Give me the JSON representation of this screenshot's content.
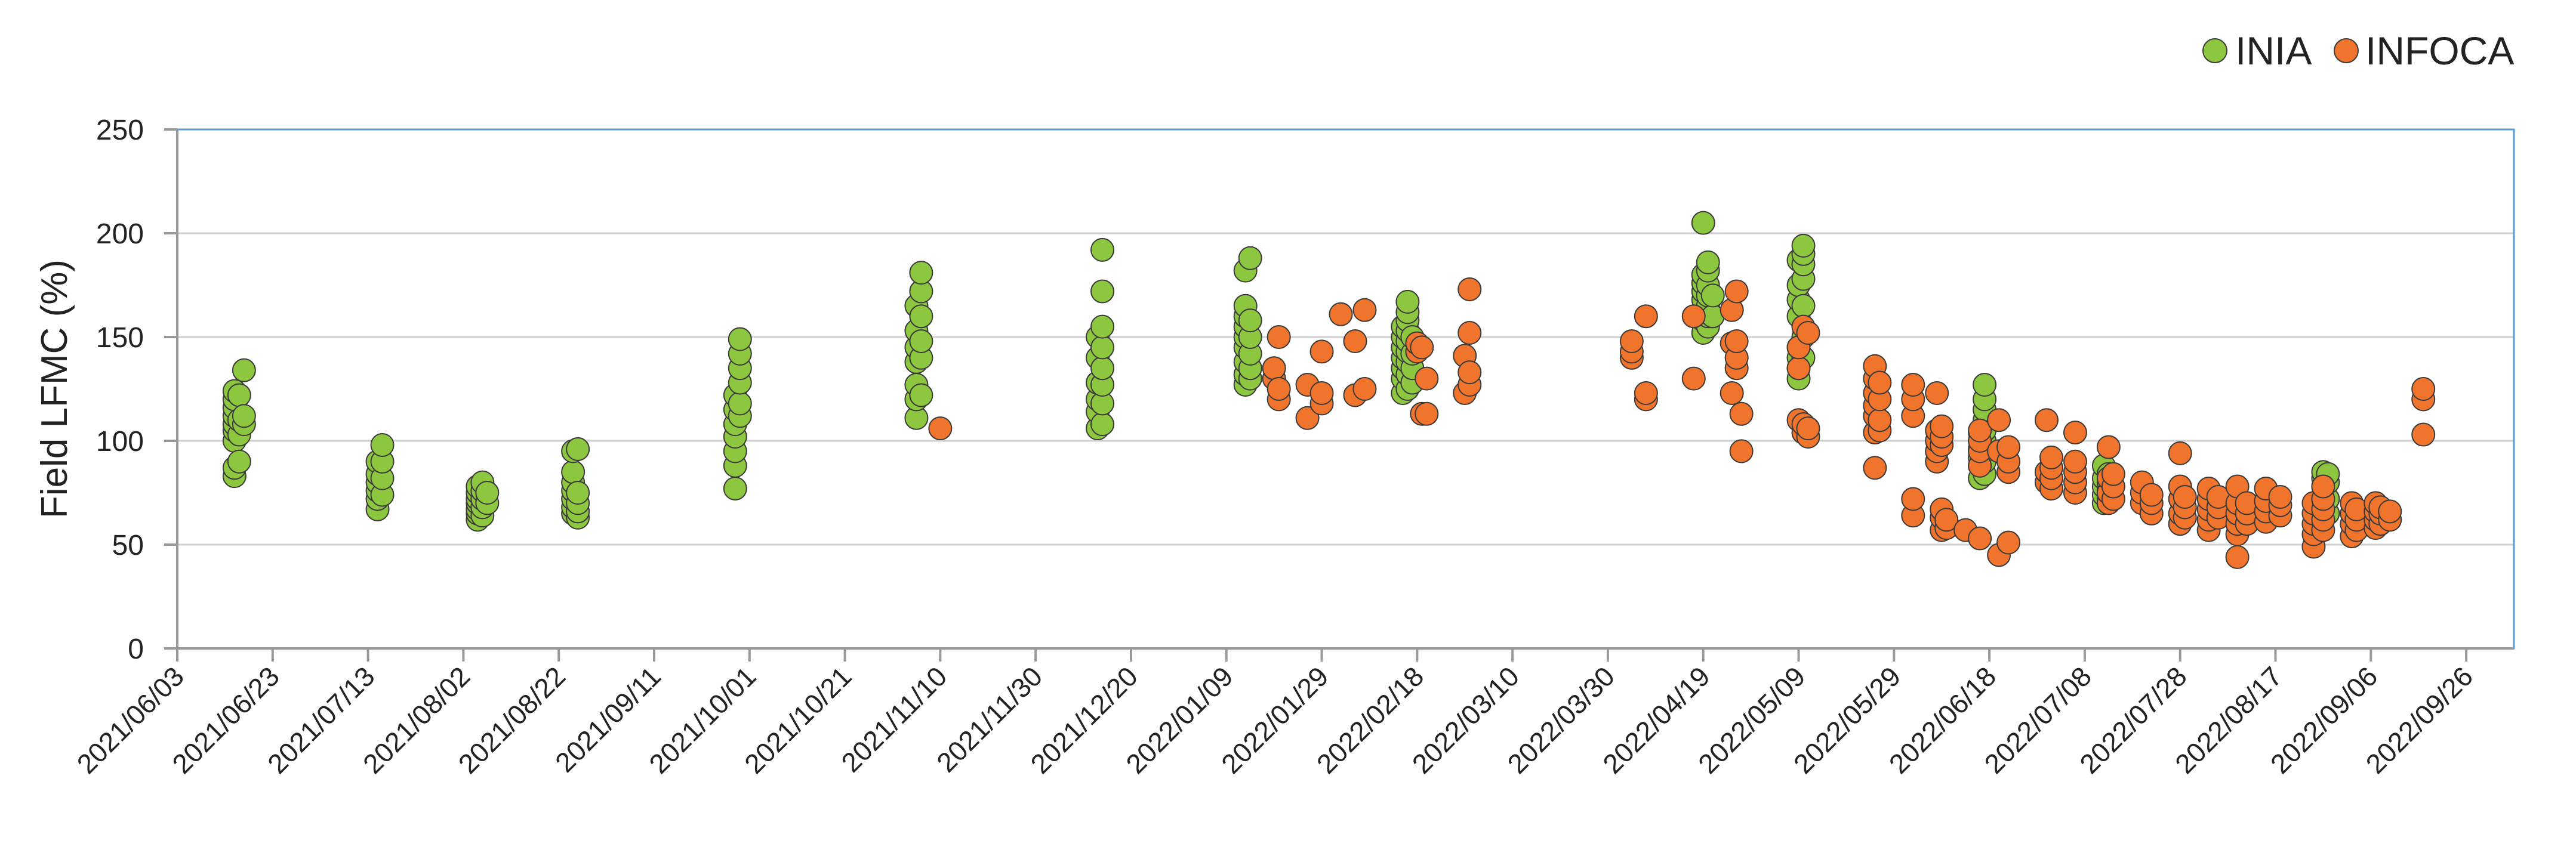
{
  "chart_data": {
    "type": "scatter",
    "ylabel": "Field LFMC (%)",
    "ylim": [
      0,
      250
    ],
    "yticks": [
      0,
      50,
      100,
      150,
      200,
      250
    ],
    "xlim": [
      "2021/06/03",
      "2022/10/06"
    ],
    "xtick_labels": [
      "2021/06/03",
      "2021/06/23",
      "2021/07/13",
      "2021/08/02",
      "2021/08/22",
      "2021/09/11",
      "2021/10/01",
      "2021/10/21",
      "2021/11/10",
      "2021/11/30",
      "2021/12/20",
      "2022/01/09",
      "2022/01/29",
      "2022/02/18",
      "2022/03/10",
      "2022/03/30",
      "2022/04/19",
      "2022/05/09",
      "2022/05/29",
      "2022/06/18",
      "2022/07/08",
      "2022/07/28",
      "2022/08/17",
      "2022/09/06",
      "2022/09/26"
    ],
    "grid": "horizontal",
    "legend_position": "top-right",
    "colors": {
      "INIA": "#8dc63f",
      "INFOCA": "#f0742c",
      "marker_edge": "#3a3a3a",
      "grid": "#cfcfcf",
      "plot_border": "#5b9bd5",
      "axis": "#999999"
    },
    "series": [
      {
        "name": "INIA",
        "points": [
          [
            "2021/06/15",
            [
              83,
              87,
              100,
              105,
              108,
              112,
              116,
              120,
              124
            ]
          ],
          [
            "2021/06/16",
            [
              90,
              103,
              110,
              122
            ]
          ],
          [
            "2021/06/17",
            [
              108,
              112,
              134
            ]
          ],
          [
            "2021/07/15",
            [
              67,
              72,
              76,
              80,
              84,
              90
            ]
          ],
          [
            "2021/07/16",
            [
              74,
              82,
              90,
              98
            ]
          ],
          [
            "2021/08/05",
            [
              62,
              65,
              67,
              70,
              72,
              75,
              78
            ]
          ],
          [
            "2021/08/06",
            [
              64,
              68,
              72,
              76,
              80
            ]
          ],
          [
            "2021/08/07",
            [
              70,
              75
            ]
          ],
          [
            "2021/08/25",
            [
              65,
              68,
              72,
              76,
              80,
              85,
              95
            ]
          ],
          [
            "2021/08/26",
            [
              63,
              66,
              70,
              75,
              96
            ]
          ],
          [
            "2021/09/28",
            [
              77,
              88,
              95,
              102,
              108,
              115,
              122
            ]
          ],
          [
            "2021/09/29",
            [
              112,
              118,
              128,
              135,
              142,
              149
            ]
          ],
          [
            "2021/11/05",
            [
              111,
              120,
              127,
              138,
              145,
              153,
              165
            ]
          ],
          [
            "2021/11/06",
            [
              122,
              140,
              148,
              160,
              172,
              181
            ]
          ],
          [
            "2021/12/13",
            [
              106,
              114,
              120,
              128,
              140,
              150
            ]
          ],
          [
            "2021/12/14",
            [
              108,
              118,
              127,
              135,
              145,
              155,
              172,
              192
            ]
          ],
          [
            "2022/01/13",
            [
              127,
              132,
              138,
              145,
              150,
              155,
              160,
              165,
              182
            ]
          ],
          [
            "2022/01/14",
            [
              130,
              135,
              142,
              150,
              158,
              188
            ]
          ],
          [
            "2022/02/15",
            [
              123,
              130,
              135,
              140,
              145,
              150,
              155
            ]
          ],
          [
            "2022/02/16",
            [
              125,
              132,
              138,
              143,
              148,
              153,
              158,
              162,
              167
            ]
          ],
          [
            "2022/02/17",
            [
              128,
              135,
              142,
              150
            ]
          ],
          [
            "2022/04/19",
            [
              152,
              158,
              162,
              168,
              172,
              176,
              180,
              205
            ]
          ],
          [
            "2022/04/20",
            [
              155,
              160,
              165,
              170,
              175,
              182,
              186
            ]
          ],
          [
            "2022/04/21",
            [
              160,
              170
            ]
          ],
          [
            "2022/05/09",
            [
              130,
              135,
              140,
              145,
              160,
              168,
              175,
              187
            ]
          ],
          [
            "2022/05/10",
            [
              140,
              150,
              165,
              178,
              185,
              190,
              194
            ]
          ],
          [
            "2022/06/16",
            [
              82,
              88,
              92,
              96,
              100,
              104
            ]
          ],
          [
            "2022/06/17",
            [
              84,
              90,
              95,
              100,
              105,
              110,
              115,
              120,
              127
            ]
          ],
          [
            "2022/07/12",
            [
              70,
              74,
              78,
              82,
              88
            ]
          ],
          [
            "2022/07/13",
            [
              72,
              76,
              80,
              84
            ]
          ],
          [
            "2022/08/27",
            [
              62,
              66,
              70,
              74,
              78,
              82,
              85
            ]
          ],
          [
            "2022/08/28",
            [
              65,
              72,
              80,
              84
            ]
          ]
        ]
      },
      {
        "name": "INFOCA",
        "points": [
          [
            "2021/11/10",
            [
              106
            ]
          ],
          [
            "2022/01/19",
            [
              130,
              135
            ]
          ],
          [
            "2022/01/20",
            [
              120,
              125,
              150
            ]
          ],
          [
            "2022/01/26",
            [
              111,
              127
            ]
          ],
          [
            "2022/01/29",
            [
              118,
              123,
              143
            ]
          ],
          [
            "2022/02/02",
            [
              161
            ]
          ],
          [
            "2022/02/05",
            [
              122,
              148
            ]
          ],
          [
            "2022/02/07",
            [
              125,
              163
            ]
          ],
          [
            "2022/02/18",
            [
              143,
              147
            ]
          ],
          [
            "2022/02/19",
            [
              113,
              145
            ]
          ],
          [
            "2022/02/20",
            [
              113,
              130
            ]
          ],
          [
            "2022/02/28",
            [
              123,
              141
            ]
          ],
          [
            "2022/03/01",
            [
              127,
              133,
              152,
              173
            ]
          ],
          [
            "2022/04/04",
            [
              140,
              143,
              148
            ]
          ],
          [
            "2022/04/07",
            [
              120,
              123,
              160
            ]
          ],
          [
            "2022/04/17",
            [
              130,
              160
            ]
          ],
          [
            "2022/04/25",
            [
              123,
              147,
              163
            ]
          ],
          [
            "2022/04/26",
            [
              135,
              140,
              148,
              172
            ]
          ],
          [
            "2022/04/27",
            [
              95,
              113
            ]
          ],
          [
            "2022/05/09",
            [
              110,
              135,
              145
            ]
          ],
          [
            "2022/05/10",
            [
              104,
              108,
              155
            ]
          ],
          [
            "2022/05/11",
            [
              102,
              106,
              152
            ]
          ],
          [
            "2022/05/25",
            [
              87,
              104,
              112,
              117,
              123,
              130,
              136
            ]
          ],
          [
            "2022/05/26",
            [
              105,
              110,
              120,
              128
            ]
          ],
          [
            "2022/06/02",
            [
              64,
              72,
              112,
              120,
              127
            ]
          ],
          [
            "2022/06/07",
            [
              90,
              95,
              100,
              105,
              123
            ]
          ],
          [
            "2022/06/08",
            [
              57,
              63,
              67,
              98,
              102,
              107
            ]
          ],
          [
            "2022/06/09",
            [
              58,
              62
            ]
          ],
          [
            "2022/06/13",
            [
              57
            ]
          ],
          [
            "2022/06/16",
            [
              53,
              88,
              95,
              100,
              105
            ]
          ],
          [
            "2022/06/20",
            [
              45,
              95,
              110
            ]
          ],
          [
            "2022/06/22",
            [
              51,
              85,
              90,
              97
            ]
          ],
          [
            "2022/06/30",
            [
              80,
              85,
              110
            ]
          ],
          [
            "2022/07/01",
            [
              77,
              82,
              87,
              92
            ]
          ],
          [
            "2022/07/06",
            [
              75,
              80,
              85,
              90,
              104
            ]
          ],
          [
            "2022/07/13",
            [
              70,
              75,
              82,
              97
            ]
          ],
          [
            "2022/07/14",
            [
              72,
              78,
              84
            ]
          ],
          [
            "2022/07/20",
            [
              70,
              75,
              80
            ]
          ],
          [
            "2022/07/22",
            [
              65,
              70,
              74
            ]
          ],
          [
            "2022/07/28",
            [
              60,
              65,
              72,
              78,
              94
            ]
          ],
          [
            "2022/07/29",
            [
              63,
              68,
              73
            ]
          ],
          [
            "2022/08/03",
            [
              57,
              62,
              67,
              72,
              77
            ]
          ],
          [
            "2022/08/05",
            [
              63,
              68,
              73
            ]
          ],
          [
            "2022/08/09",
            [
              44,
              55,
              60,
              65,
              70,
              78
            ]
          ],
          [
            "2022/08/11",
            [
              60,
              65,
              70
            ]
          ],
          [
            "2022/08/15",
            [
              61,
              66,
              71,
              77
            ]
          ],
          [
            "2022/08/18",
            [
              64,
              69,
              73
            ]
          ],
          [
            "2022/08/25",
            [
              49,
              55,
              60,
              65,
              70
            ]
          ],
          [
            "2022/08/27",
            [
              57,
              62,
              67,
              72,
              78
            ]
          ],
          [
            "2022/09/02",
            [
              54,
              60,
              65,
              70
            ]
          ],
          [
            "2022/09/03",
            [
              57,
              62,
              67
            ]
          ],
          [
            "2022/09/07",
            [
              58,
              62,
              66,
              70
            ]
          ],
          [
            "2022/09/08",
            [
              60,
              65,
              68
            ]
          ],
          [
            "2022/09/10",
            [
              62,
              66
            ]
          ],
          [
            "2022/09/17",
            [
              103,
              120,
              125
            ]
          ]
        ]
      }
    ]
  }
}
